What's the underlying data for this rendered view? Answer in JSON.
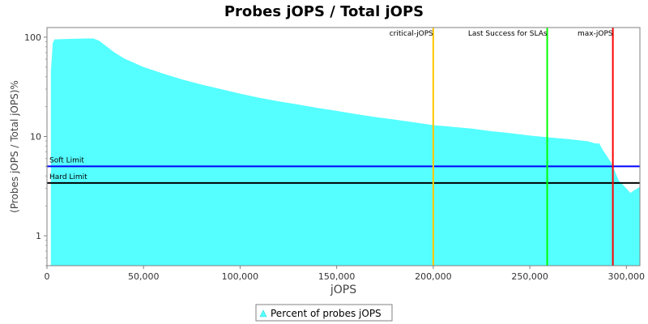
{
  "chart_data": {
    "type": "area",
    "title": "Probes jOPS / Total jOPS",
    "xlabel": "jOPS",
    "ylabel": "(Probes jOPS / Total jOPS)%",
    "y_scale": "log",
    "xlim": [
      0,
      307000
    ],
    "ylim": [
      0.5,
      125
    ],
    "x_ticks": [
      0,
      50000,
      100000,
      150000,
      200000,
      250000,
      300000
    ],
    "x_tick_labels": [
      "0",
      "50,000",
      "100,000",
      "150,000",
      "200,000",
      "250,000",
      "300,000"
    ],
    "y_ticks": [
      1,
      10,
      100
    ],
    "y_tick_labels": [
      "1",
      "10",
      "100"
    ],
    "grid": false,
    "legend_position": "bottom",
    "series": [
      {
        "name": "Percent of probes jOPS",
        "color": "#55FFFF",
        "x": [
          2000,
          3000,
          4000,
          10000,
          20000,
          24000,
          27000,
          30000,
          35000,
          40000,
          50000,
          60000,
          70000,
          80000,
          90000,
          100000,
          110000,
          120000,
          130000,
          140000,
          150000,
          160000,
          170000,
          180000,
          190000,
          200000,
          210000,
          220000,
          230000,
          240000,
          250000,
          260000,
          270000,
          280000,
          284000,
          286000,
          288000,
          290000,
          292000,
          294000,
          296000,
          298000,
          300000,
          302000,
          305000,
          307000
        ],
        "values": [
          45,
          88,
          95,
          96,
          97,
          97,
          92,
          83,
          70,
          61,
          50,
          43,
          37.5,
          33.3,
          30,
          27,
          24.5,
          22.6,
          21,
          19.4,
          18.1,
          16.8,
          15.7,
          14.8,
          13.9,
          13,
          12.5,
          12,
          11.3,
          10.8,
          10.2,
          9.8,
          9.4,
          8.95,
          8.5,
          8.5,
          7.2,
          6.3,
          5.5,
          4.5,
          3.6,
          3.3,
          3.0,
          2.7,
          2.95,
          3.1
        ]
      }
    ],
    "reference_lines": [
      {
        "label": "Soft Limit",
        "y": 5.0,
        "color": "#0000FF"
      },
      {
        "label": "Hard Limit",
        "y": 3.4,
        "color": "#000000"
      }
    ],
    "markers": [
      {
        "label": "critical-jOPS",
        "x": 200000,
        "color": "#FFC800"
      },
      {
        "label": "Last Success for SLAs",
        "x": 259000,
        "color": "#00FF00"
      },
      {
        "label": "max-jOPS",
        "x": 293000,
        "color": "#FF0000"
      }
    ]
  }
}
